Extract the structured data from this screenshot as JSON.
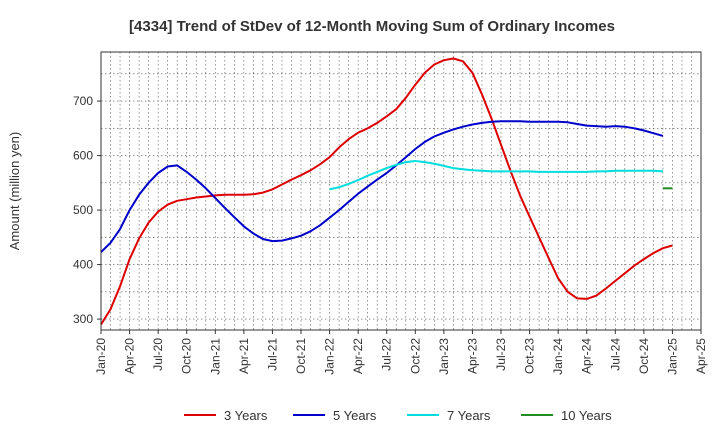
{
  "chart_data": {
    "type": "line",
    "title": "[4334]  Trend of StDev of 12-Month Moving Sum of Ordinary Incomes",
    "xlabel": "",
    "ylabel": "Amount (million yen)",
    "ylim": [
      280,
      790
    ],
    "yticks": [
      300,
      400,
      500,
      600,
      700
    ],
    "x_start": "Jan-20",
    "x_ticks": [
      "Jan-20",
      "Apr-20",
      "Jul-20",
      "Oct-20",
      "Jan-21",
      "Apr-21",
      "Jul-21",
      "Oct-21",
      "Jan-22",
      "Apr-22",
      "Jul-22",
      "Oct-22",
      "Jan-23",
      "Apr-23",
      "Jul-23",
      "Oct-23",
      "Jan-24",
      "Apr-24",
      "Jul-24",
      "Oct-24",
      "Jan-25",
      "Apr-25"
    ],
    "legend_position": "bottom",
    "series": [
      {
        "name": "3 Years",
        "color": "#dd0000",
        "start_month": 0,
        "values": [
          290,
          318,
          360,
          410,
          448,
          477,
          497,
          510,
          517,
          520,
          523,
          525,
          527,
          528,
          528,
          528,
          529,
          532,
          538,
          547,
          556,
          564,
          573,
          584,
          597,
          615,
          630,
          642,
          650,
          660,
          672,
          685,
          706,
          730,
          752,
          767,
          775,
          778,
          773,
          752,
          712,
          668,
          620,
          572,
          527,
          488,
          450,
          412,
          375,
          350,
          338,
          337,
          343,
          356,
          370,
          384,
          398,
          410,
          421,
          430,
          435
        ]
      },
      {
        "name": "5 Years",
        "color": "#0000cc",
        "start_month": 0,
        "values": [
          423,
          440,
          465,
          500,
          528,
          550,
          568,
          580,
          582,
          570,
          556,
          540,
          522,
          504,
          487,
          470,
          457,
          447,
          443,
          444,
          448,
          453,
          461,
          472,
          486,
          500,
          515,
          530,
          543,
          556,
          568,
          582,
          597,
          612,
          625,
          635,
          642,
          648,
          653,
          657,
          660,
          662,
          663,
          663,
          663,
          662,
          662,
          662,
          662,
          661,
          658,
          655,
          654,
          653,
          654,
          653,
          650,
          646,
          641,
          636
        ]
      },
      {
        "name": "7 Years",
        "color": "#00dddd",
        "start_month": 24,
        "values": [
          538,
          542,
          548,
          555,
          563,
          570,
          577,
          583,
          588,
          590,
          588,
          585,
          581,
          577,
          575,
          573,
          572,
          571,
          571,
          571,
          571,
          571,
          570,
          570,
          570,
          570,
          570,
          570,
          571,
          571,
          572,
          572,
          572,
          572,
          572,
          571
        ]
      },
      {
        "name": "10 Years",
        "color": "#228b22",
        "start_month": 59,
        "values": [
          540,
          540
        ]
      }
    ]
  }
}
